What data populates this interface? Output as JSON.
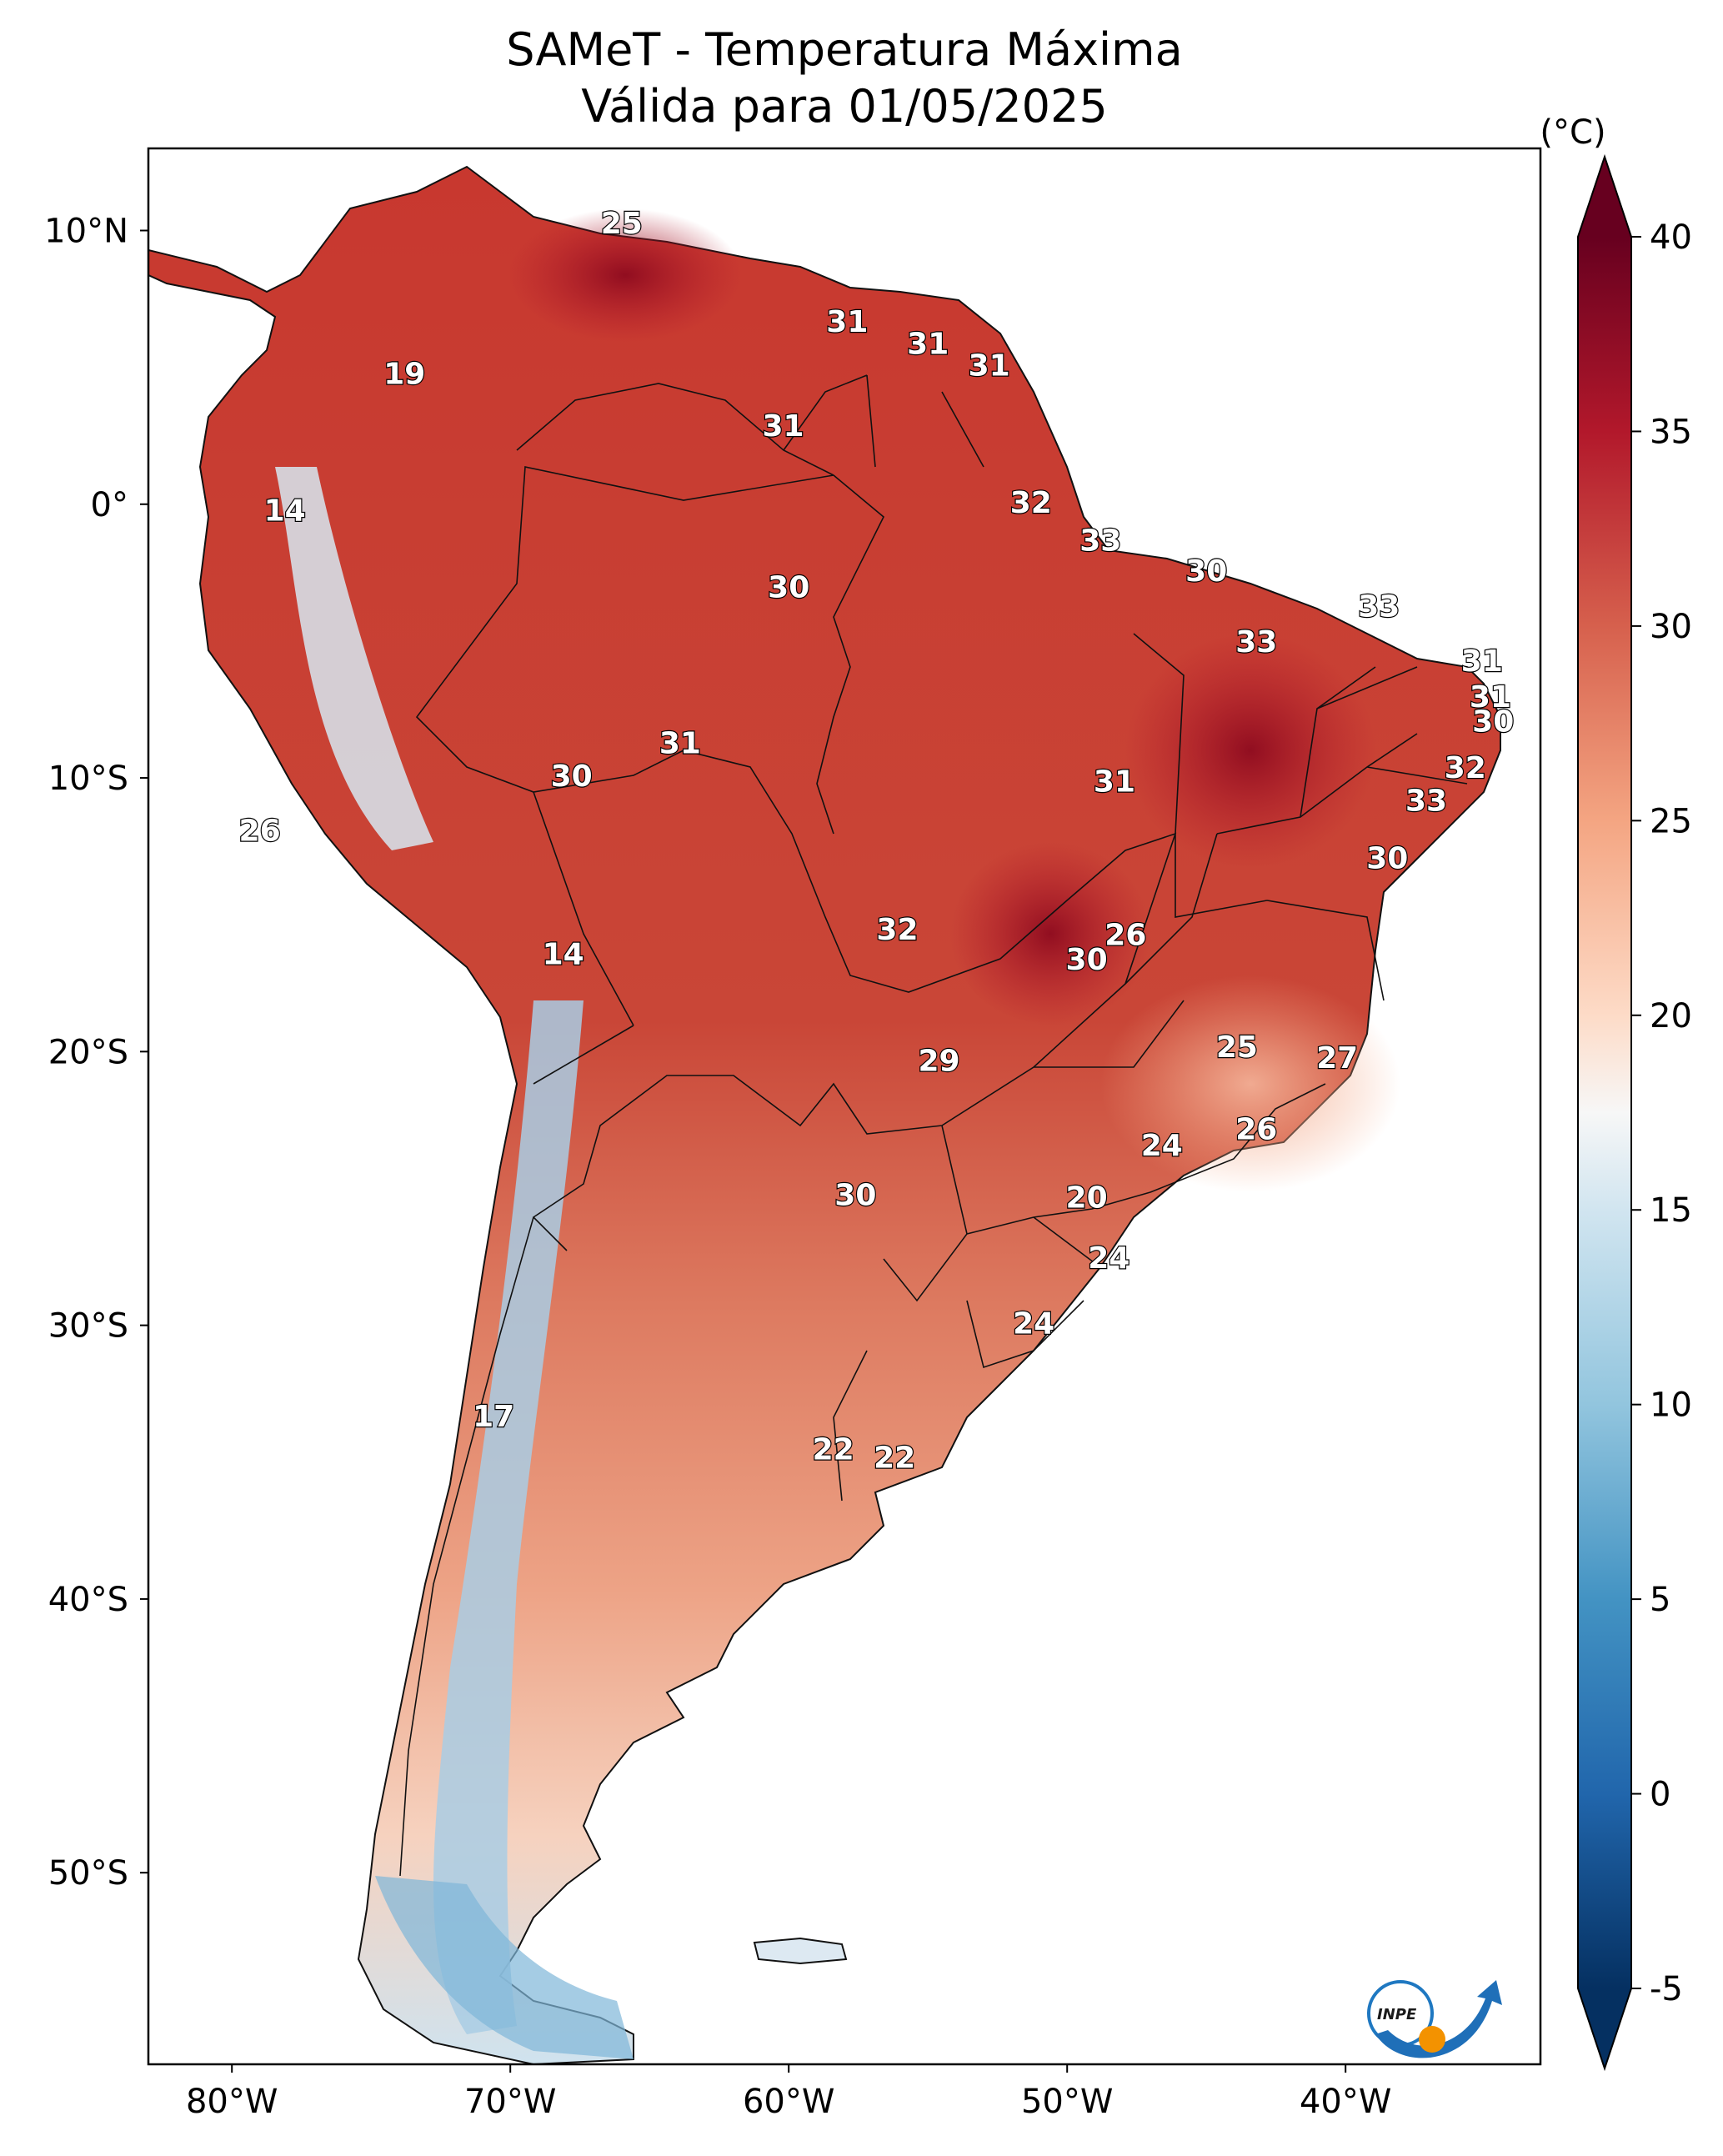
{
  "title": {
    "line1": "SAMeT - Temperatura Máxima",
    "line2": "Válida para 01/05/2025"
  },
  "map": {
    "lon_range": [
      -83,
      -33
    ],
    "lat_range": [
      -57,
      13
    ],
    "lon_ticks": [
      {
        "value": -80,
        "label": "80°W"
      },
      {
        "value": -70,
        "label": "70°W"
      },
      {
        "value": -60,
        "label": "60°W"
      },
      {
        "value": -50,
        "label": "50°W"
      },
      {
        "value": -40,
        "label": "40°W"
      }
    ],
    "lat_ticks": [
      {
        "value": 10,
        "label": "10°N"
      },
      {
        "value": 0,
        "label": "0°"
      },
      {
        "value": -10,
        "label": "10°S"
      },
      {
        "value": -20,
        "label": "20°S"
      },
      {
        "value": -30,
        "label": "30°S"
      },
      {
        "value": -40,
        "label": "40°S"
      },
      {
        "value": -50,
        "label": "50°S"
      }
    ],
    "colors": {
      "hot": "#a50f23",
      "warm": "#d6604d",
      "mild": "#f4a582",
      "cool": "#f7f7f7",
      "cold": "#92c5de",
      "very_cold": "#2166ac"
    }
  },
  "station_labels": [
    {
      "value": "25",
      "lon": -66.0,
      "lat": 10.2
    },
    {
      "value": "31",
      "lon": -57.9,
      "lat": 6.6
    },
    {
      "value": "31",
      "lon": -55.0,
      "lat": 5.8
    },
    {
      "value": "31",
      "lon": -52.8,
      "lat": 5.0
    },
    {
      "value": "19",
      "lon": -73.8,
      "lat": 4.7
    },
    {
      "value": "31",
      "lon": -60.2,
      "lat": 2.8
    },
    {
      "value": "32",
      "lon": -51.3,
      "lat": 0.0
    },
    {
      "value": "14",
      "lon": -78.1,
      "lat": -0.3
    },
    {
      "value": "33",
      "lon": -48.8,
      "lat": -1.4
    },
    {
      "value": "30",
      "lon": -45.0,
      "lat": -2.5
    },
    {
      "value": "30",
      "lon": -60.0,
      "lat": -3.1
    },
    {
      "value": "33",
      "lon": -38.8,
      "lat": -3.8
    },
    {
      "value": "33",
      "lon": -43.2,
      "lat": -5.1
    },
    {
      "value": "31",
      "lon": -35.1,
      "lat": -5.8
    },
    {
      "value": "31",
      "lon": -34.8,
      "lat": -7.1
    },
    {
      "value": "30",
      "lon": -34.7,
      "lat": -8.0
    },
    {
      "value": "31",
      "lon": -63.9,
      "lat": -8.8
    },
    {
      "value": "32",
      "lon": -35.7,
      "lat": -9.7
    },
    {
      "value": "30",
      "lon": -67.8,
      "lat": -10.0
    },
    {
      "value": "31",
      "lon": -48.3,
      "lat": -10.2
    },
    {
      "value": "33",
      "lon": -37.1,
      "lat": -10.9
    },
    {
      "value": "26",
      "lon": -79.0,
      "lat": -12.0
    },
    {
      "value": "30",
      "lon": -38.5,
      "lat": -13.0
    },
    {
      "value": "32",
      "lon": -56.1,
      "lat": -15.6
    },
    {
      "value": "26",
      "lon": -47.9,
      "lat": -15.8
    },
    {
      "value": "14",
      "lon": -68.1,
      "lat": -16.5
    },
    {
      "value": "30",
      "lon": -49.3,
      "lat": -16.7
    },
    {
      "value": "25",
      "lon": -43.9,
      "lat": -19.9
    },
    {
      "value": "27",
      "lon": -40.3,
      "lat": -20.3
    },
    {
      "value": "29",
      "lon": -54.6,
      "lat": -20.4
    },
    {
      "value": "26",
      "lon": -43.2,
      "lat": -22.9
    },
    {
      "value": "24",
      "lon": -46.6,
      "lat": -23.5
    },
    {
      "value": "20",
      "lon": -49.3,
      "lat": -25.4
    },
    {
      "value": "30",
      "lon": -57.6,
      "lat": -25.3
    },
    {
      "value": "24",
      "lon": -48.5,
      "lat": -27.6
    },
    {
      "value": "24",
      "lon": -51.2,
      "lat": -30.0
    },
    {
      "value": "17",
      "lon": -70.6,
      "lat": -33.4
    },
    {
      "value": "22",
      "lon": -58.4,
      "lat": -34.6
    },
    {
      "value": "22",
      "lon": -56.2,
      "lat": -34.9
    }
  ],
  "colorbar": {
    "unit": "(°C)",
    "min": -5,
    "max": 40,
    "ticks": [
      "-5",
      "0",
      "5",
      "10",
      "15",
      "20",
      "25",
      "30",
      "35",
      "40"
    ],
    "stops": [
      {
        "value": -5,
        "color": "#053061"
      },
      {
        "value": 0,
        "color": "#2166ac"
      },
      {
        "value": 5,
        "color": "#4393c3"
      },
      {
        "value": 10,
        "color": "#92c5de"
      },
      {
        "value": 15,
        "color": "#d1e5f0"
      },
      {
        "value": 17.5,
        "color": "#f7f7f7"
      },
      {
        "value": 20,
        "color": "#fddbc7"
      },
      {
        "value": 25,
        "color": "#f4a582"
      },
      {
        "value": 30,
        "color": "#d6604d"
      },
      {
        "value": 35,
        "color": "#b2182b"
      },
      {
        "value": 40,
        "color": "#67001f"
      }
    ]
  },
  "logo": {
    "text": "INPE"
  }
}
